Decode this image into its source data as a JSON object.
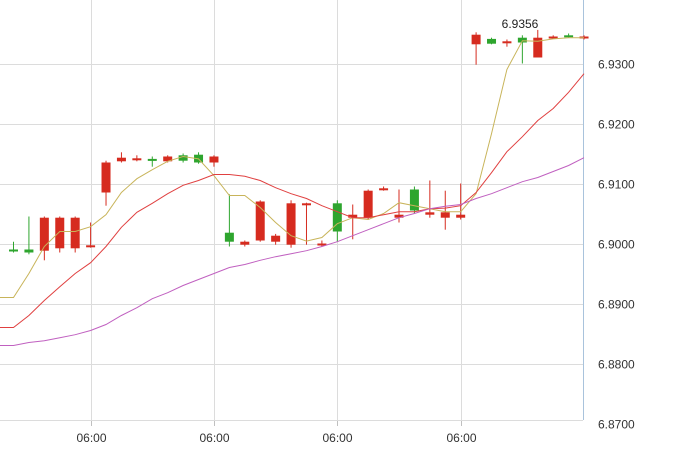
{
  "chart_data": {
    "type": "candlestick",
    "title": "",
    "xlabel": "",
    "ylabel": "",
    "ylim": [
      6.868,
      6.942
    ],
    "y_ticks": [
      "6.9300",
      "6.9200",
      "6.9100",
      "6.9000",
      "6.8900",
      "6.8800",
      "6.8700"
    ],
    "x_ticks": [
      "06:00",
      "06:00",
      "06:00",
      "06:00"
    ],
    "grid": true,
    "annotations": [
      {
        "text": "6.9356",
        "value": 6.9356
      }
    ],
    "colors": {
      "up": "#2ea52e",
      "down": "#d62b1f",
      "ma_short": "#c8b45a",
      "ma_mid": "#e04040",
      "ma_long": "#c060c0",
      "grid": "#dcdcdc"
    },
    "candles": [
      {
        "o": 6.899,
        "c": 6.899,
        "h": 6.9003,
        "l": 6.8985
      },
      {
        "o": 6.8985,
        "c": 6.899,
        "h": 6.9045,
        "l": 6.8982
      },
      {
        "o": 6.9043,
        "c": 6.8988,
        "h": 6.9045,
        "l": 6.8972
      },
      {
        "o": 6.9043,
        "c": 6.8992,
        "h": 6.9045,
        "l": 6.8985
      },
      {
        "o": 6.9043,
        "c": 6.8992,
        "h": 6.9045,
        "l": 6.8985
      },
      {
        "o": 6.8997,
        "c": 6.8995,
        "h": 6.9035,
        "l": 6.8993
      },
      {
        "o": 6.9135,
        "c": 6.9085,
        "h": 6.9138,
        "l": 6.9063
      },
      {
        "o": 6.9143,
        "c": 6.9137,
        "h": 6.9152,
        "l": 6.9135
      },
      {
        "o": 6.9142,
        "c": 6.914,
        "h": 6.9147,
        "l": 6.9137
      },
      {
        "o": 6.914,
        "c": 6.9141,
        "h": 6.9145,
        "l": 6.9128
      },
      {
        "o": 6.9145,
        "c": 6.9137,
        "h": 6.9147,
        "l": 6.9135
      },
      {
        "o": 6.9138,
        "c": 6.9147,
        "h": 6.915,
        "l": 6.9135
      },
      {
        "o": 6.9135,
        "c": 6.9148,
        "h": 6.9152,
        "l": 6.9133
      },
      {
        "o": 6.9145,
        "c": 6.9135,
        "h": 6.9147,
        "l": 6.9128
      },
      {
        "o": 6.9003,
        "c": 6.9018,
        "h": 6.9082,
        "l": 6.8995
      },
      {
        "o": 6.9003,
        "c": 6.8998,
        "h": 6.9005,
        "l": 6.8995
      },
      {
        "o": 6.907,
        "c": 6.9005,
        "h": 6.9072,
        "l": 6.9003
      },
      {
        "o": 6.9013,
        "c": 6.9003,
        "h": 6.9016,
        "l": 6.8998
      },
      {
        "o": 6.9067,
        "c": 6.8998,
        "h": 6.9072,
        "l": 6.8993
      },
      {
        "o": 6.9067,
        "c": 6.9065,
        "h": 6.9068,
        "l": 6.8998
      },
      {
        "o": 6.9,
        "c": 6.8998,
        "h": 6.9005,
        "l": 6.8995
      },
      {
        "o": 6.902,
        "c": 6.9067,
        "h": 6.9072,
        "l": 6.9003
      },
      {
        "o": 6.9048,
        "c": 6.9043,
        "h": 6.9065,
        "l": 6.9007
      },
      {
        "o": 6.9088,
        "c": 6.9043,
        "h": 6.909,
        "l": 6.904
      },
      {
        "o": 6.9092,
        "c": 6.909,
        "h": 6.9095,
        "l": 6.9088
      },
      {
        "o": 6.9048,
        "c": 6.9043,
        "h": 6.909,
        "l": 6.9035
      },
      {
        "o": 6.9055,
        "c": 6.909,
        "h": 6.9095,
        "l": 6.905
      },
      {
        "o": 6.9052,
        "c": 6.9048,
        "h": 6.9105,
        "l": 6.9043
      },
      {
        "o": 6.9052,
        "c": 6.9043,
        "h": 6.9088,
        "l": 6.9023
      },
      {
        "o": 6.9048,
        "c": 6.9043,
        "h": 6.91,
        "l": 6.904
      },
      {
        "o": 6.9348,
        "c": 6.9332,
        "h": 6.9352,
        "l": 6.9298
      },
      {
        "o": 6.9333,
        "c": 6.9341,
        "h": 6.9343,
        "l": 6.9332
      },
      {
        "o": 6.9337,
        "c": 6.9335,
        "h": 6.934,
        "l": 6.9328
      },
      {
        "o": 6.9335,
        "c": 6.9343,
        "h": 6.9347,
        "l": 6.93
      },
      {
        "o": 6.9343,
        "c": 6.931,
        "h": 6.9356,
        "l": 6.931
      },
      {
        "o": 6.9345,
        "c": 6.9343,
        "h": 6.9347,
        "l": 6.9343
      },
      {
        "o": 6.9345,
        "c": 6.9347,
        "h": 6.935,
        "l": 6.9343
      },
      {
        "o": 6.9345,
        "c": 6.9343,
        "h": 6.9347,
        "l": 6.934
      }
    ],
    "series": [
      {
        "key": "ma_short",
        "values": [
          6.891,
          6.895,
          6.8995,
          6.902,
          6.902,
          6.9028,
          6.9048,
          6.9085,
          6.9108,
          6.9123,
          6.9137,
          6.9145,
          6.9141,
          6.9113,
          6.908,
          6.908,
          6.906,
          6.9035,
          6.9013,
          6.9004,
          6.901,
          6.9033,
          6.9043,
          6.904,
          6.905,
          6.9068,
          6.9063,
          6.9058,
          6.9053,
          6.9053,
          6.9083,
          6.9183,
          6.929,
          6.9338,
          6.9337,
          6.9341,
          6.9343,
          6.9343
        ]
      },
      {
        "key": "ma_mid",
        "values": [
          6.886,
          6.888,
          6.8905,
          6.8928,
          6.895,
          6.8968,
          6.8995,
          6.9027,
          6.9052,
          6.9067,
          6.9083,
          6.9097,
          6.9105,
          6.9115,
          6.9115,
          6.9112,
          6.9105,
          6.9093,
          6.9083,
          6.9075,
          6.9063,
          6.9053,
          6.9043,
          6.9043,
          6.9048,
          6.9053,
          6.9053,
          6.9058,
          6.9059,
          6.9063,
          6.9085,
          6.9118,
          6.9153,
          6.9178,
          6.9205,
          6.9225,
          6.9252,
          6.9283
        ]
      },
      {
        "key": "ma_long",
        "values": [
          6.883,
          6.8835,
          6.8838,
          6.8843,
          6.8848,
          6.8855,
          6.8865,
          6.888,
          6.8893,
          6.8908,
          6.8918,
          6.893,
          6.894,
          6.895,
          6.896,
          6.8965,
          6.8972,
          6.8978,
          6.8983,
          6.8988,
          6.8995,
          6.9003,
          6.9013,
          6.9023,
          6.9033,
          6.9043,
          6.905,
          6.9058,
          6.9062,
          6.9065,
          6.9075,
          6.9083,
          6.9093,
          6.9103,
          6.911,
          6.912,
          6.913,
          6.9143
        ]
      }
    ]
  }
}
